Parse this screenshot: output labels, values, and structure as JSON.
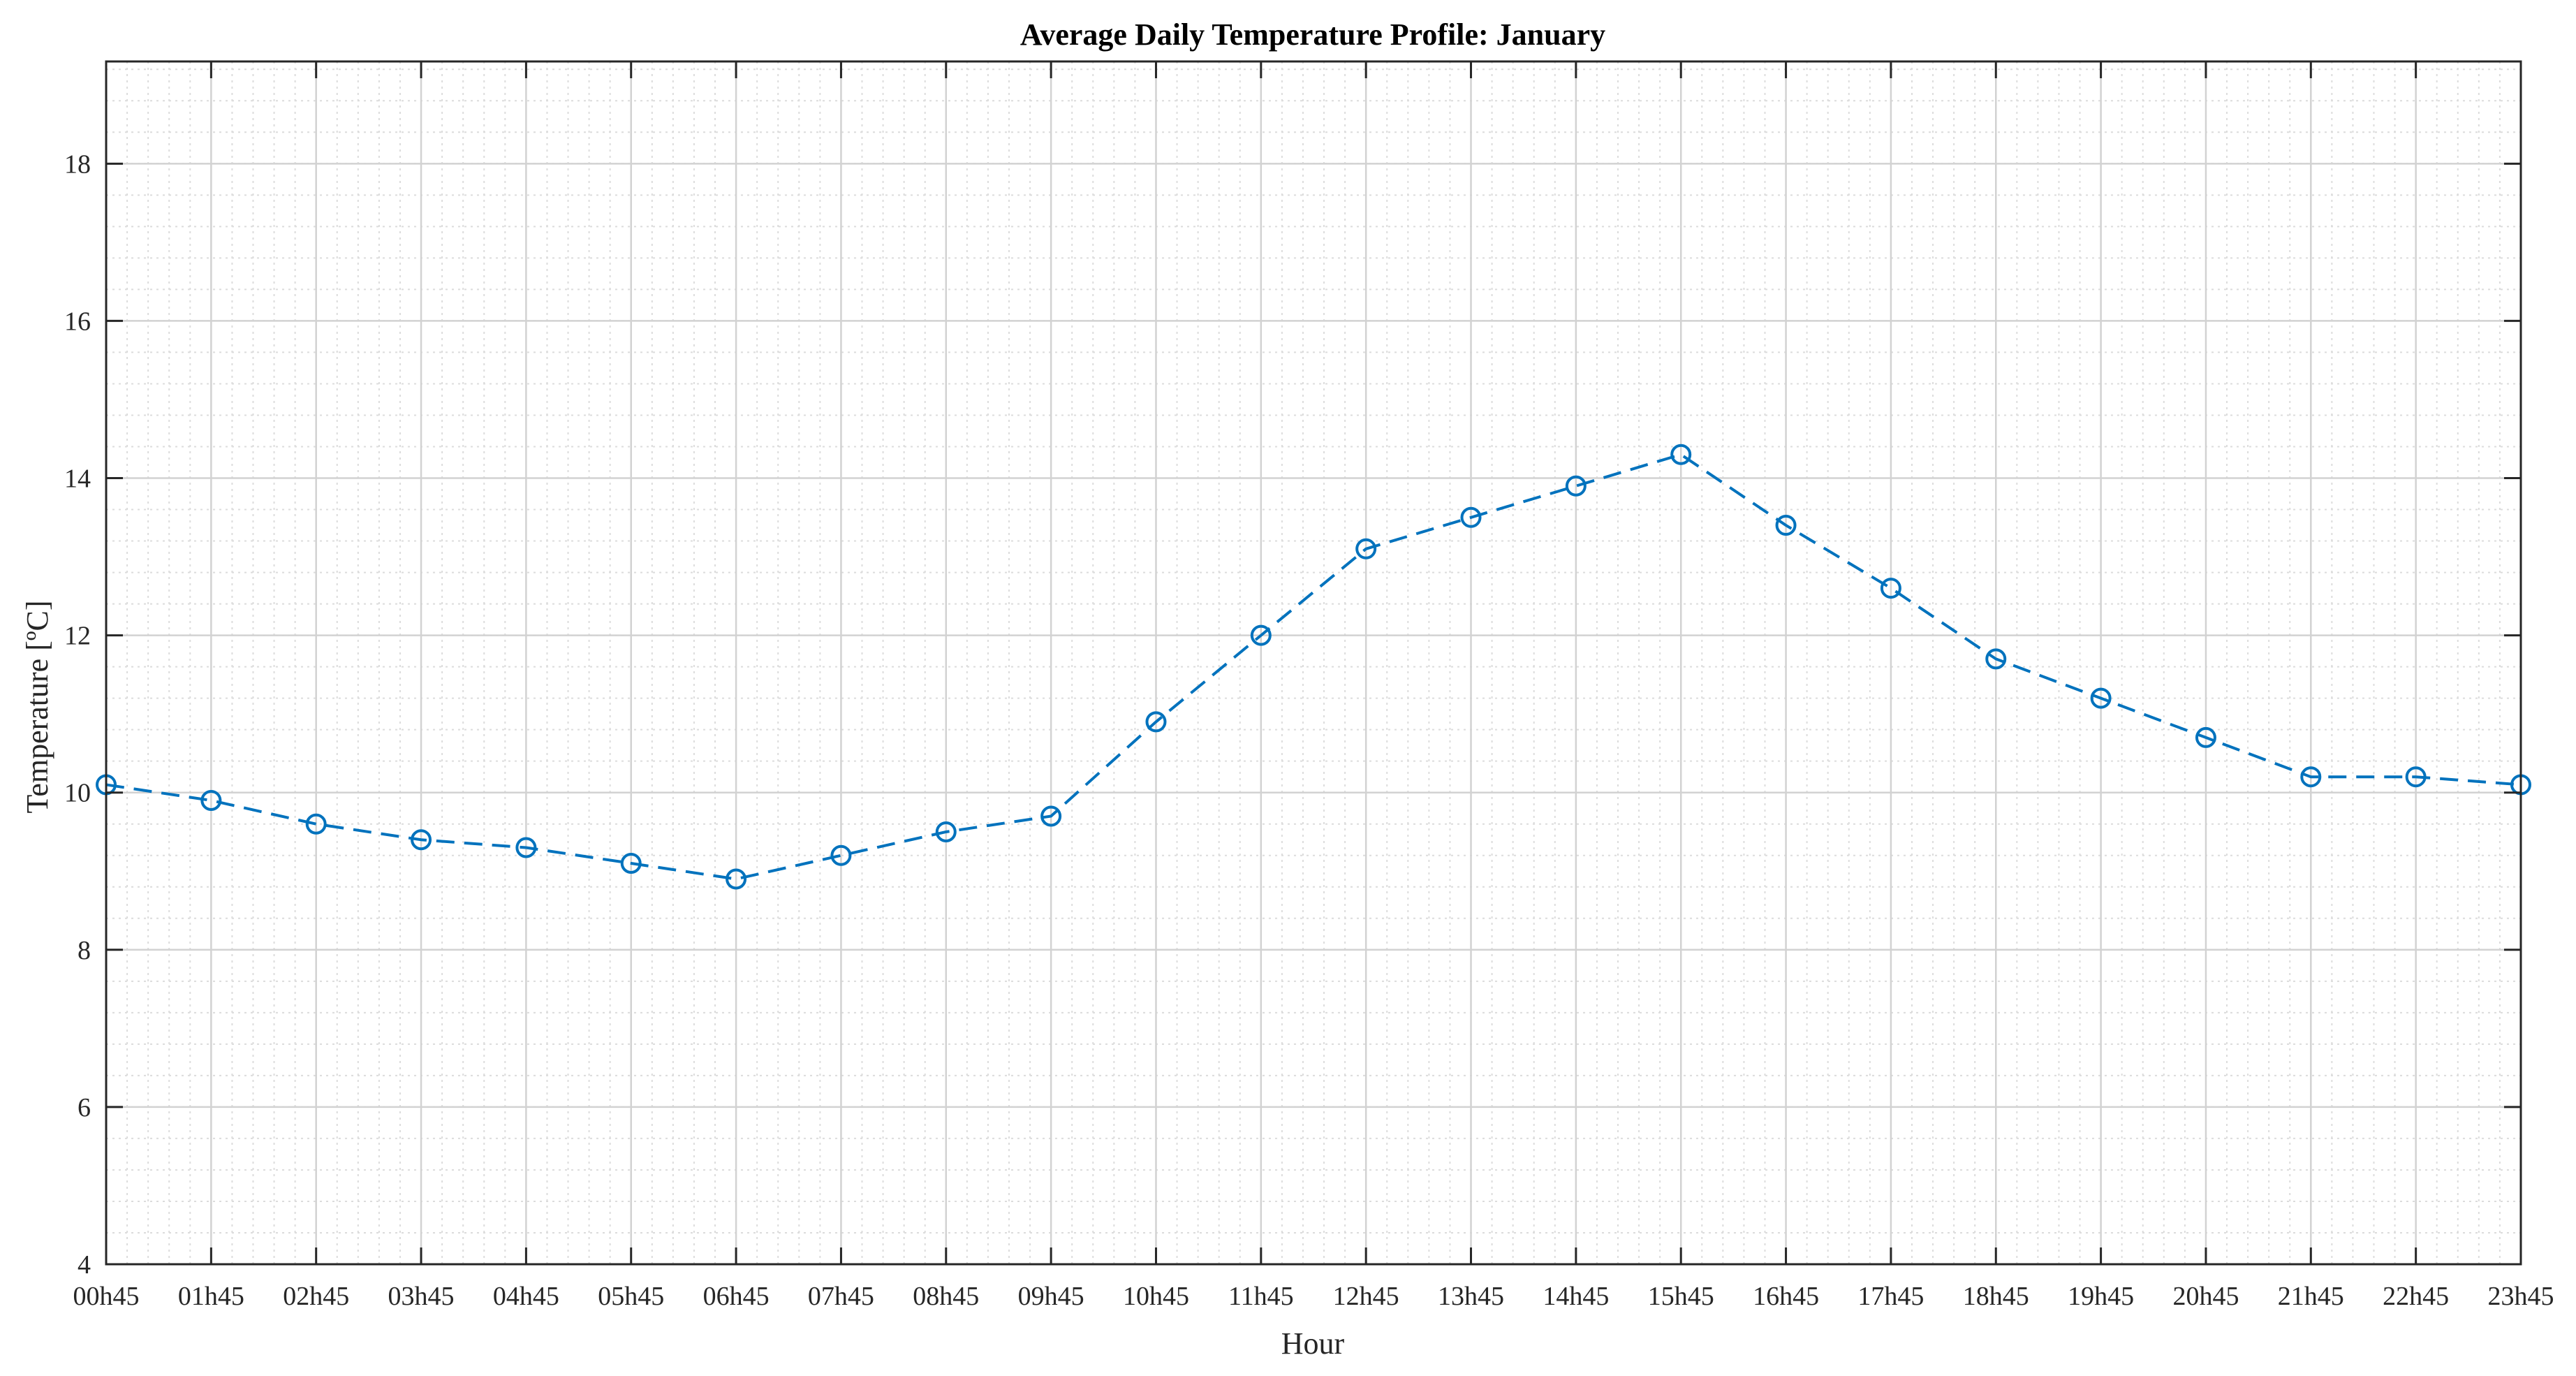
{
  "chart_data": {
    "type": "line",
    "title": "Average Daily Temperature Profile: January",
    "xlabel": "Hour",
    "ylabel": "Temperature [ºC]",
    "categories": [
      "00h45",
      "01h45",
      "02h45",
      "03h45",
      "04h45",
      "05h45",
      "06h45",
      "07h45",
      "08h45",
      "09h45",
      "10h45",
      "11h45",
      "12h45",
      "13h45",
      "14h45",
      "15h45",
      "16h45",
      "17h45",
      "18h45",
      "19h45",
      "20h45",
      "21h45",
      "22h45",
      "23h45"
    ],
    "series": [
      {
        "name": "Temperature",
        "values": [
          10.1,
          9.9,
          9.6,
          9.4,
          9.3,
          9.1,
          8.9,
          9.2,
          9.5,
          9.7,
          10.9,
          12.0,
          13.1,
          13.5,
          13.9,
          14.3,
          13.4,
          12.6,
          11.7,
          11.2,
          10.7,
          10.2,
          10.2,
          10.1
        ],
        "color": "#0072BD",
        "line_style": "dashed",
        "marker": "circle"
      }
    ],
    "ylim": [
      4,
      19.3
    ],
    "yticks": [
      4,
      6,
      8,
      10,
      12,
      14,
      16,
      18
    ],
    "grid": true,
    "minor_grid": true
  }
}
